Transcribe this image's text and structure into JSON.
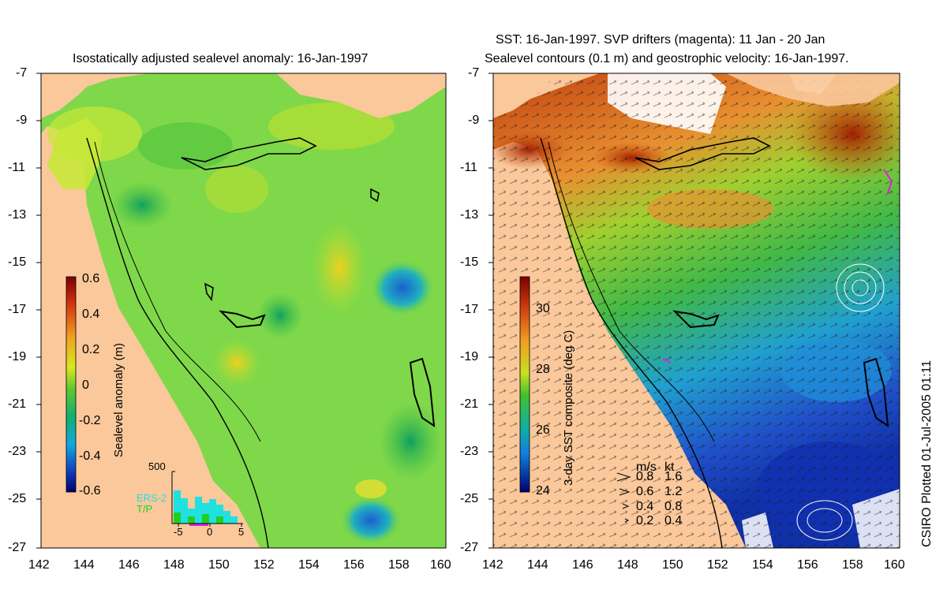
{
  "left_panel": {
    "title": "Isostatically adjusted sealevel anomaly: 16-Jan-1997",
    "colorbar_label": "Sealevel anomaly (m)",
    "colorbar_ticks": [
      "0.6",
      "0.4",
      "0.2",
      "0",
      "-0.2",
      "-0.4",
      "-0.6"
    ],
    "inset": {
      "y_max_label": "500",
      "legend": [
        "ERS-2",
        "T/P"
      ],
      "legend_colors": [
        "#20e0e0",
        "#20d020"
      ],
      "x_ticks": [
        "-5",
        "0",
        "5"
      ]
    }
  },
  "right_panel": {
    "title_line1": "SST: 16-Jan-1997. SVP drifters (magenta): 11 Jan - 20 Jan",
    "title_line2": "Sealevel contours (0.1 m) and geostrophic velocity: 16-Jan-1997.",
    "colorbar_label": "3-day SST composite (deg C)",
    "colorbar_ticks": [
      "30",
      "28",
      "26",
      "24"
    ],
    "velocity_legend": {
      "header_ms": "m/s",
      "header_kt": "kt",
      "rows": [
        {
          "ms": "0.8",
          "kt": "1.6"
        },
        {
          "ms": "0.6",
          "kt": "1.2"
        },
        {
          "ms": "0.4",
          "kt": "0.8"
        },
        {
          "ms": "0.2",
          "kt": "0.4"
        }
      ]
    }
  },
  "axes": {
    "lat_ticks": [
      "-7",
      "-9",
      "-11",
      "-13",
      "-15",
      "-17",
      "-19",
      "-21",
      "-23",
      "-25",
      "-27"
    ],
    "lon_ticks": [
      "142",
      "144",
      "146",
      "148",
      "150",
      "152",
      "154",
      "156",
      "158",
      "160"
    ]
  },
  "credit": "CSIRO Plotted 01-Jul-2005 01:11",
  "colors": {
    "land": "#fac89a",
    "sla_mid": "#7fd84a",
    "sst_warm": "#c03a10",
    "sst_cold": "#1a3cc8"
  }
}
